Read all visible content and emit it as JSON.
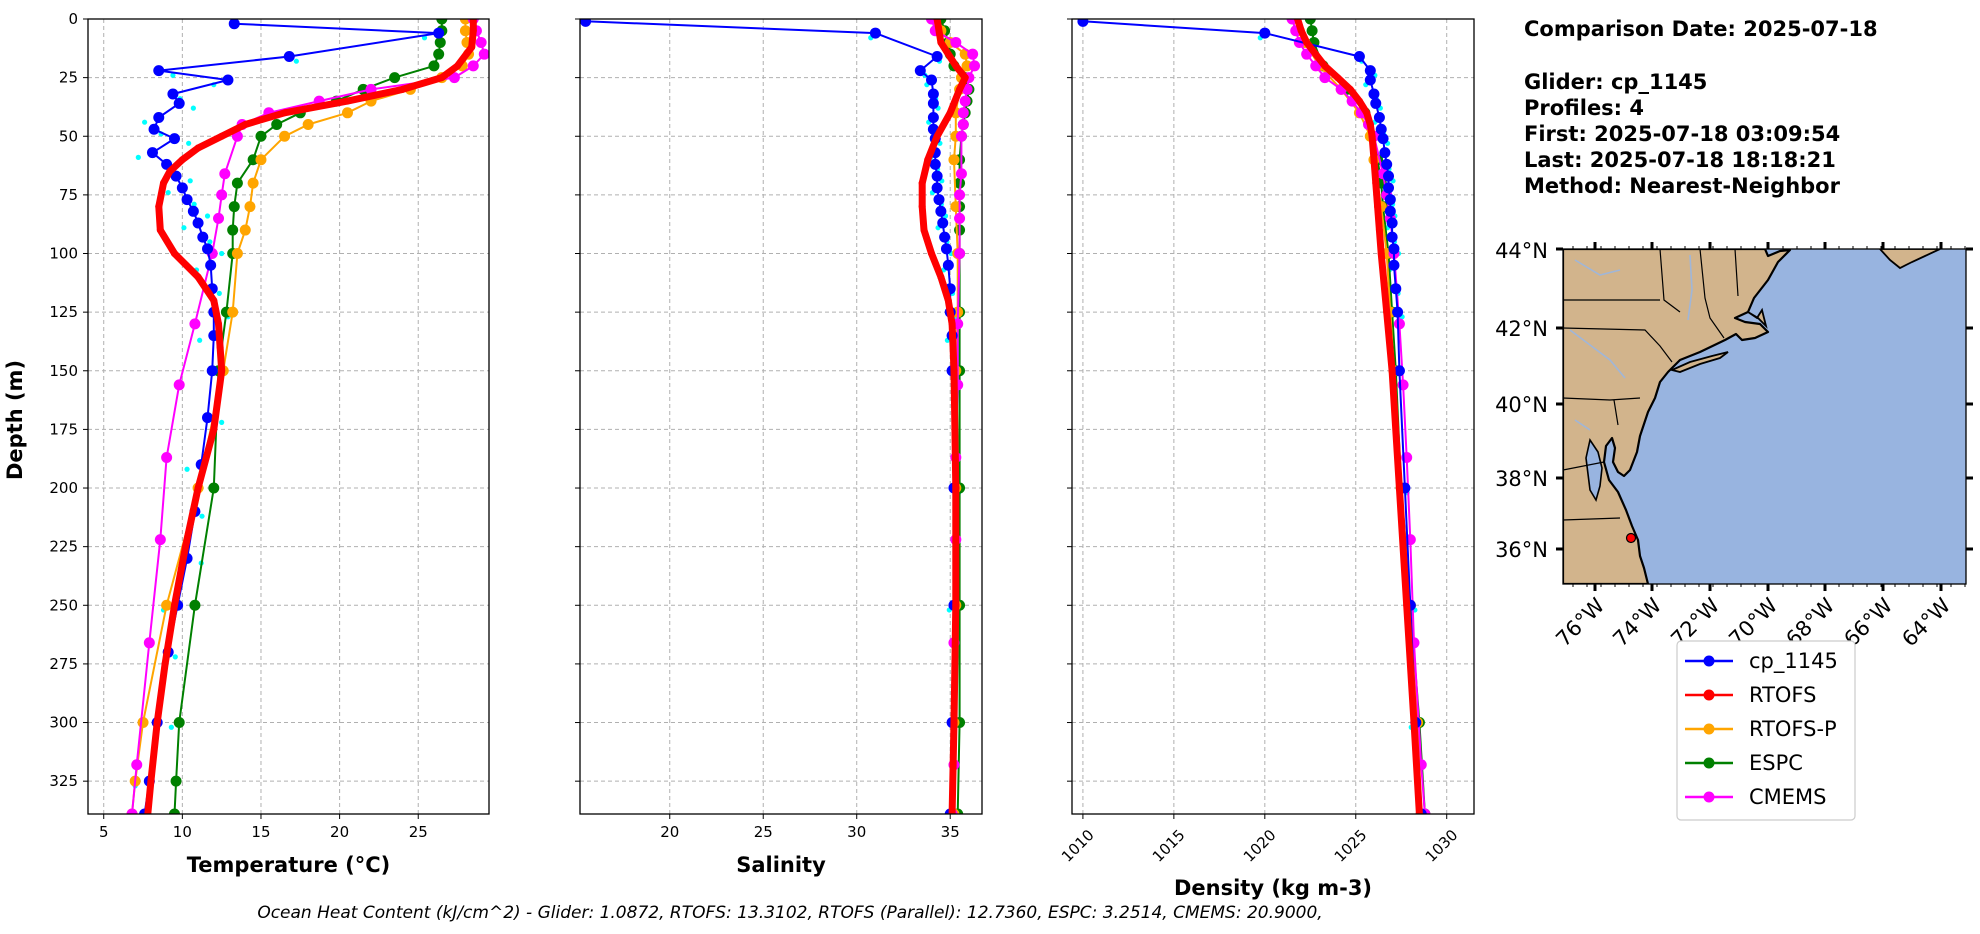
{
  "info": {
    "comparison_date": "Comparison Date: 2025-07-18",
    "glider": "Glider: cp_1145",
    "profiles": "Profiles: 4",
    "first": "First: 2025-07-18 03:09:54",
    "last": "Last: 2025-07-18 18:18:21",
    "method": "Method: Nearest-Neighbor"
  },
  "footer": "Ocean Heat Content (kJ/cm^2) - Glider: 1.0872,  RTOFS: 13.3102,  RTOFS (Parallel): 12.7360,  ESPC: 3.2514,  CMEMS: 20.9000,",
  "colors": {
    "cp_1145": "#0000ff",
    "RTOFS": "#ff0000",
    "RTOFS-P": "#ffa500",
    "ESPC": "#008000",
    "CMEMS": "#ff00ff",
    "glider_raw": "#00ffff",
    "land": "#d2b48c",
    "ocean": "#98b4e0",
    "rivers": "#9fb6d9"
  },
  "legend": [
    "cp_1145",
    "RTOFS",
    "RTOFS-P",
    "ESPC",
    "CMEMS"
  ],
  "map": {
    "lat_labels": [
      "44°N",
      "42°N",
      "40°N",
      "38°N",
      "36°N"
    ],
    "lon_labels": [
      "76°W",
      "74°W",
      "72°W",
      "70°W",
      "68°W",
      "66°W",
      "64°W"
    ],
    "extent": {
      "lon": [
        -77,
        -63
      ],
      "lat": [
        35,
        44
      ]
    },
    "glider_position": {
      "lon": -74.8,
      "lat": 36.3
    }
  },
  "chart_data": [
    {
      "type": "line",
      "xlabel": "Temperature (°C)",
      "ylabel": "Depth (m)",
      "xlim": [
        4,
        29.5
      ],
      "ylim": [
        339,
        0
      ],
      "xticks": [
        5,
        10,
        15,
        20,
        25
      ],
      "yticks": [
        0,
        25,
        50,
        75,
        100,
        125,
        150,
        175,
        200,
        225,
        250,
        275,
        300,
        325
      ],
      "grid": true,
      "series": [
        {
          "name": "cp_1145",
          "depth": [
            2,
            6,
            16,
            22,
            26,
            32,
            36,
            42,
            47,
            51,
            57,
            62,
            67,
            72,
            77,
            82,
            87,
            93,
            98,
            105,
            115,
            125,
            135,
            150,
            170,
            190,
            210,
            230,
            250,
            270,
            300,
            325,
            339
          ],
          "values": [
            13.3,
            26.3,
            16.8,
            8.5,
            12.9,
            9.4,
            9.8,
            8.5,
            8.2,
            9.5,
            8.1,
            9.0,
            9.6,
            10.0,
            10.3,
            10.7,
            11.0,
            11.3,
            11.6,
            11.8,
            11.9,
            12.0,
            12.0,
            11.9,
            11.6,
            11.2,
            10.8,
            10.3,
            9.7,
            9.1,
            8.4,
            7.9,
            7.6
          ]
        },
        {
          "name": "RTOFS",
          "depth": [
            0,
            5,
            12,
            20,
            25,
            30,
            35,
            40,
            45,
            50,
            55,
            60,
            65,
            70,
            80,
            90,
            100,
            110,
            120,
            130,
            140,
            150,
            175,
            200,
            225,
            250,
            275,
            300,
            325,
            339
          ],
          "values": [
            28.5,
            28.5,
            28.4,
            27.5,
            26.5,
            24.0,
            20.5,
            16.5,
            14.0,
            12.5,
            11.0,
            10.0,
            9.2,
            8.8,
            8.5,
            8.6,
            9.5,
            11.0,
            12.0,
            12.3,
            12.4,
            12.5,
            12.0,
            11.0,
            10.2,
            9.5,
            8.9,
            8.4,
            8.0,
            7.8
          ]
        },
        {
          "name": "RTOFS-P",
          "depth": [
            0,
            5,
            10,
            15,
            20,
            25,
            30,
            35,
            40,
            45,
            50,
            60,
            70,
            80,
            90,
            100,
            125,
            150,
            200,
            250,
            300,
            325,
            339
          ],
          "values": [
            28.0,
            28.0,
            28.1,
            28.2,
            27.8,
            26.5,
            24.5,
            22.0,
            20.5,
            18.0,
            16.5,
            15.0,
            14.5,
            14.3,
            14.0,
            13.5,
            13.2,
            12.6,
            11.0,
            9.0,
            7.5,
            7.0,
            6.8
          ]
        },
        {
          "name": "ESPC",
          "depth": [
            0,
            5,
            10,
            15,
            20,
            25,
            30,
            35,
            40,
            45,
            50,
            60,
            70,
            80,
            90,
            100,
            125,
            150,
            200,
            250,
            300,
            325,
            339
          ],
          "values": [
            26.5,
            26.5,
            26.4,
            26.3,
            26.0,
            23.5,
            21.5,
            19.8,
            17.5,
            16.0,
            15.0,
            14.5,
            13.5,
            13.3,
            13.2,
            13.2,
            12.8,
            12.3,
            12.0,
            10.8,
            9.8,
            9.6,
            9.5
          ]
        },
        {
          "name": "CMEMS",
          "depth": [
            0,
            5,
            10,
            15,
            20,
            25,
            30,
            35,
            40,
            45,
            50,
            66,
            75,
            85,
            100,
            130,
            156,
            187,
            222,
            266,
            318,
            339
          ],
          "values": [
            28.5,
            28.7,
            29.0,
            29.2,
            28.5,
            27.3,
            22.0,
            18.7,
            15.5,
            13.8,
            13.5,
            12.7,
            12.5,
            12.3,
            11.9,
            10.8,
            9.8,
            9.0,
            8.6,
            7.9,
            7.1,
            6.8
          ]
        }
      ]
    },
    {
      "type": "line",
      "xlabel": "Salinity",
      "xlim": [
        15.2,
        36.7
      ],
      "ylim": [
        339,
        0
      ],
      "xticks": [
        20,
        25,
        30,
        35
      ],
      "grid": true,
      "series": [
        {
          "name": "cp_1145",
          "depth": [
            1,
            6,
            16,
            22,
            26,
            32,
            36,
            42,
            47,
            51,
            57,
            62,
            67,
            72,
            77,
            82,
            87,
            93,
            98,
            105,
            115,
            125,
            135,
            150,
            200,
            250,
            300,
            339
          ],
          "values": [
            15.5,
            31.0,
            34.3,
            33.4,
            34.0,
            34.1,
            34.1,
            34.1,
            34.1,
            34.2,
            34.2,
            34.2,
            34.3,
            34.3,
            34.4,
            34.5,
            34.6,
            34.7,
            34.8,
            34.9,
            35.0,
            35.0,
            35.1,
            35.1,
            35.2,
            35.2,
            35.1,
            35.0
          ]
        },
        {
          "name": "RTOFS",
          "depth": [
            0,
            10,
            20,
            25,
            30,
            40,
            50,
            60,
            70,
            80,
            90,
            100,
            110,
            120,
            130,
            150,
            200,
            250,
            300,
            339
          ],
          "values": [
            34.3,
            34.5,
            35.3,
            35.8,
            35.5,
            35.0,
            34.3,
            33.8,
            33.5,
            33.5,
            33.6,
            34.0,
            34.5,
            34.9,
            35.1,
            35.2,
            35.3,
            35.3,
            35.2,
            35.1
          ]
        },
        {
          "name": "RTOFS-P",
          "depth": [
            0,
            5,
            10,
            15,
            20,
            25,
            30,
            40,
            50,
            60,
            80,
            100,
            125,
            150,
            200,
            250,
            300,
            339
          ],
          "values": [
            34.2,
            34.5,
            35.0,
            35.8,
            35.9,
            35.6,
            35.5,
            35.3,
            35.3,
            35.2,
            35.3,
            35.4,
            35.4,
            35.3,
            35.3,
            35.3,
            35.2,
            35.2
          ]
        },
        {
          "name": "ESPC",
          "depth": [
            0,
            5,
            10,
            15,
            20,
            25,
            30,
            35,
            40,
            45,
            50,
            60,
            70,
            80,
            90,
            100,
            125,
            150,
            200,
            250,
            300,
            339
          ],
          "values": [
            34.5,
            34.7,
            34.9,
            35.0,
            35.2,
            35.8,
            36.0,
            35.9,
            35.8,
            35.7,
            35.6,
            35.5,
            35.5,
            35.5,
            35.5,
            35.5,
            35.5,
            35.5,
            35.5,
            35.5,
            35.5,
            35.4
          ]
        },
        {
          "name": "CMEMS",
          "depth": [
            0,
            5,
            10,
            15,
            20,
            25,
            30,
            35,
            40,
            45,
            50,
            66,
            75,
            85,
            100,
            130,
            156,
            187,
            222,
            266,
            318,
            339
          ],
          "values": [
            34.0,
            34.2,
            35.3,
            36.2,
            36.3,
            36.0,
            35.9,
            35.8,
            35.7,
            35.7,
            35.6,
            35.6,
            35.5,
            35.5,
            35.5,
            35.4,
            35.4,
            35.3,
            35.3,
            35.2,
            35.2,
            35.1
          ]
        }
      ]
    },
    {
      "type": "line",
      "xlabel": "Density (kg m-3)",
      "xlim": [
        1009.4,
        1031.5
      ],
      "ylim": [
        339,
        0
      ],
      "xticks": [
        1010,
        1015,
        1020,
        1025,
        1030
      ],
      "grid": true,
      "series": [
        {
          "name": "cp_1145",
          "depth": [
            1,
            6,
            16,
            22,
            26,
            32,
            36,
            42,
            47,
            51,
            57,
            62,
            67,
            72,
            77,
            82,
            87,
            93,
            98,
            105,
            115,
            125,
            150,
            200,
            250,
            300,
            339
          ],
          "values": [
            1010.0,
            1020.0,
            1025.2,
            1025.8,
            1025.8,
            1026.0,
            1026.1,
            1026.3,
            1026.4,
            1026.5,
            1026.6,
            1026.7,
            1026.8,
            1026.8,
            1026.9,
            1026.9,
            1027.0,
            1027.0,
            1027.1,
            1027.1,
            1027.2,
            1027.3,
            1027.4,
            1027.7,
            1028.0,
            1028.3,
            1028.6
          ]
        },
        {
          "name": "RTOFS",
          "depth": [
            0,
            5,
            10,
            15,
            20,
            25,
            30,
            35,
            40,
            45,
            50,
            60,
            70,
            80,
            90,
            100,
            125,
            150,
            200,
            250,
            300,
            339
          ],
          "values": [
            1021.8,
            1022.0,
            1022.3,
            1022.8,
            1023.3,
            1024.0,
            1024.7,
            1025.2,
            1025.6,
            1025.8,
            1025.9,
            1026.0,
            1026.1,
            1026.2,
            1026.3,
            1026.4,
            1026.7,
            1027.0,
            1027.4,
            1027.8,
            1028.2,
            1028.5
          ]
        },
        {
          "name": "RTOFS-P",
          "depth": [
            0,
            5,
            10,
            20,
            30,
            40,
            50,
            60,
            80,
            100,
            125,
            150,
            200,
            250,
            300,
            339
          ],
          "values": [
            1021.7,
            1021.9,
            1022.2,
            1023.0,
            1024.2,
            1025.2,
            1025.8,
            1026.0,
            1026.4,
            1026.7,
            1026.9,
            1027.1,
            1027.5,
            1028.0,
            1028.4,
            1028.6
          ]
        },
        {
          "name": "ESPC",
          "depth": [
            0,
            5,
            10,
            20,
            30,
            40,
            50,
            60,
            70,
            80,
            100,
            125,
            150,
            200,
            250,
            300,
            339
          ],
          "values": [
            1022.5,
            1022.6,
            1022.7,
            1023.2,
            1024.5,
            1025.5,
            1026.0,
            1026.2,
            1026.4,
            1026.5,
            1026.8,
            1027.0,
            1027.2,
            1027.5,
            1028.0,
            1028.5,
            1028.8
          ]
        },
        {
          "name": "CMEMS",
          "depth": [
            0,
            5,
            10,
            15,
            20,
            25,
            30,
            35,
            40,
            45,
            50,
            66,
            75,
            85,
            100,
            130,
            156,
            187,
            222,
            266,
            318,
            339
          ],
          "values": [
            1021.5,
            1021.7,
            1021.9,
            1022.3,
            1022.8,
            1023.3,
            1024.2,
            1024.8,
            1025.3,
            1025.7,
            1026.0,
            1026.5,
            1026.7,
            1026.9,
            1027.1,
            1027.4,
            1027.6,
            1027.8,
            1028.0,
            1028.2,
            1028.6,
            1028.8
          ]
        }
      ]
    }
  ]
}
